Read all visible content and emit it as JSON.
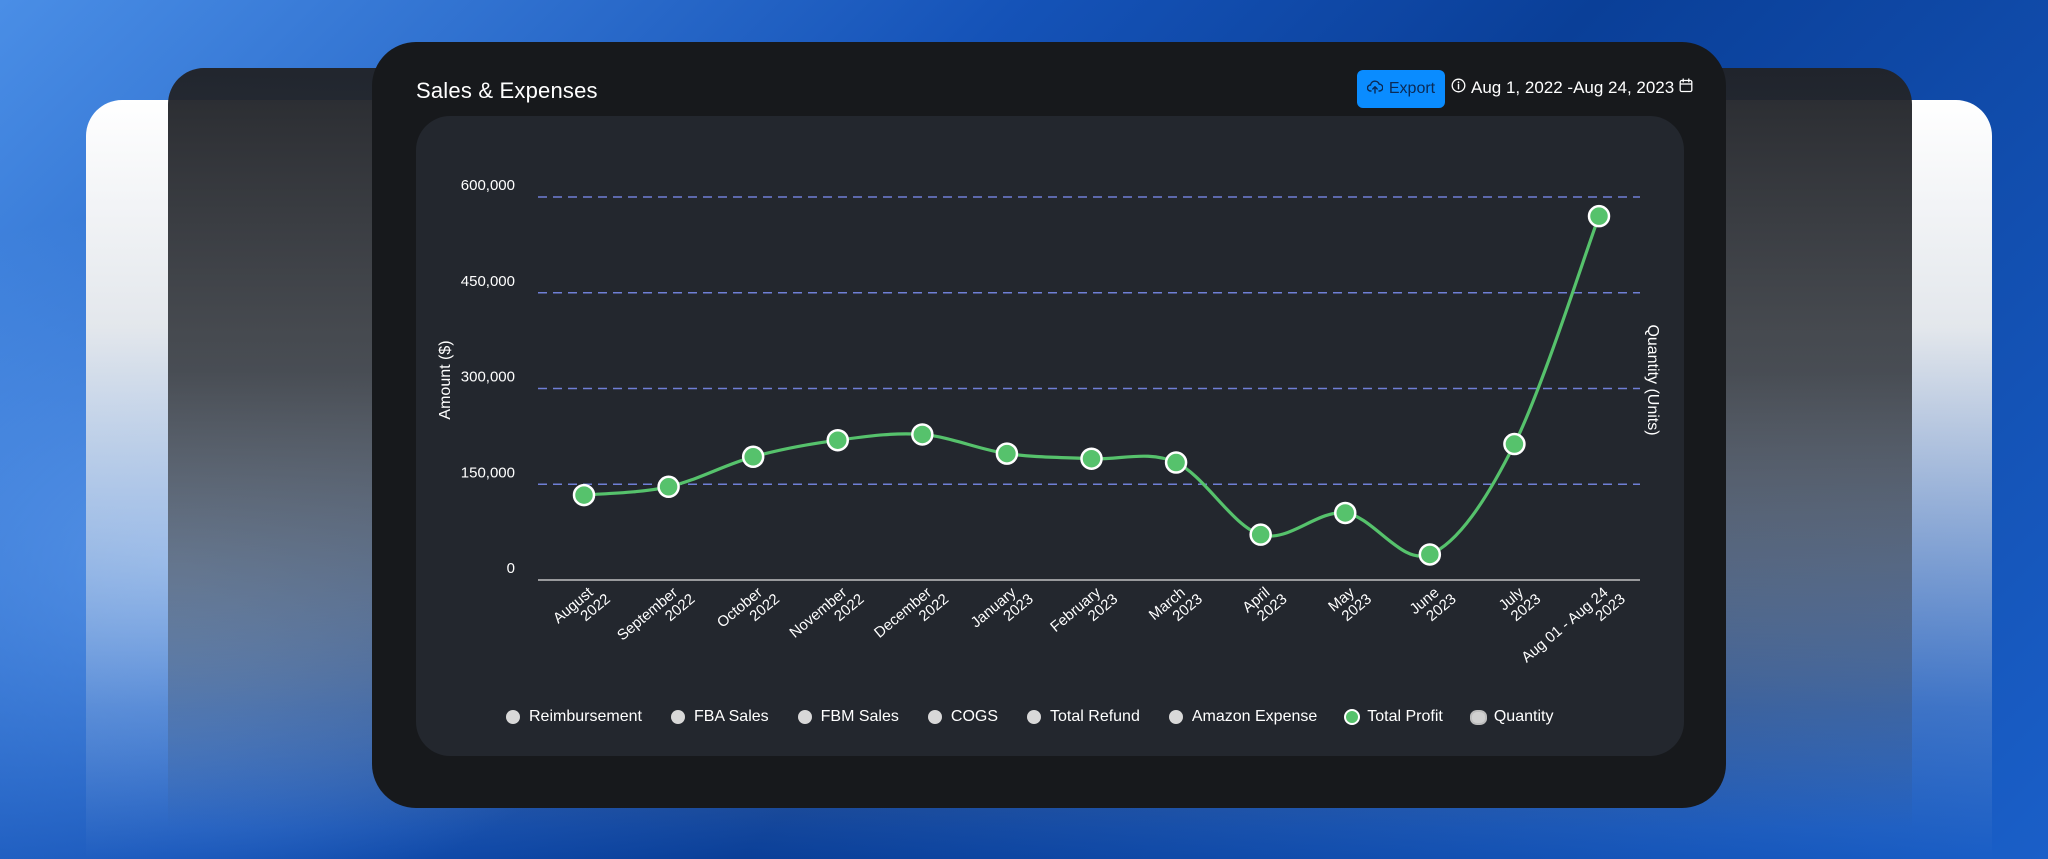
{
  "card": {
    "title": "Sales & Expenses",
    "export_label": "Export",
    "date_range": "Aug 1, 2022 -Aug 24, 2023"
  },
  "icons": {
    "export": "cloud-upload-icon",
    "info": "info-icon",
    "calendar": "calendar-icon"
  },
  "colors": {
    "accent": "#0a8cff",
    "profit_line": "#56c26c",
    "grid": "#6f7fd6",
    "panel": "#23272e",
    "card": "#17191c"
  },
  "legend": [
    {
      "label": "Reimbursement",
      "state": "hidden"
    },
    {
      "label": "FBA Sales",
      "state": "hidden"
    },
    {
      "label": "FBM Sales",
      "state": "hidden"
    },
    {
      "label": "COGS",
      "state": "hidden"
    },
    {
      "label": "Total Refund",
      "state": "hidden"
    },
    {
      "label": "Amazon Expense",
      "state": "hidden"
    },
    {
      "label": "Total Profit",
      "state": "active"
    },
    {
      "label": "Quantity",
      "state": "hidden"
    }
  ],
  "chart_data": {
    "type": "line",
    "ylabel": "Amount ($)",
    "y2label": "Quantity (Units)",
    "ylim": [
      0,
      600000
    ],
    "yticks": [
      "0",
      "150,000",
      "300,000",
      "450,000",
      "600,000"
    ],
    "grid": "dashed horizontal",
    "legend_position": "bottom",
    "categories": [
      [
        "August",
        "2022"
      ],
      [
        "September",
        "2022"
      ],
      [
        "October",
        "2022"
      ],
      [
        "November",
        "2022"
      ],
      [
        "December",
        "2022"
      ],
      [
        "January",
        "2023"
      ],
      [
        "February",
        "2023"
      ],
      [
        "March",
        "2023"
      ],
      [
        "April",
        "2023"
      ],
      [
        "May",
        "2023"
      ],
      [
        "June",
        "2023"
      ],
      [
        "July",
        "2023"
      ],
      [
        "Aug 01 - Aug 24",
        "2023"
      ]
    ],
    "series": [
      {
        "name": "Total Profit",
        "values": [
          133000,
          146000,
          193000,
          219000,
          228000,
          198000,
          190000,
          184000,
          71000,
          105000,
          40000,
          213000,
          570000
        ]
      }
    ]
  }
}
